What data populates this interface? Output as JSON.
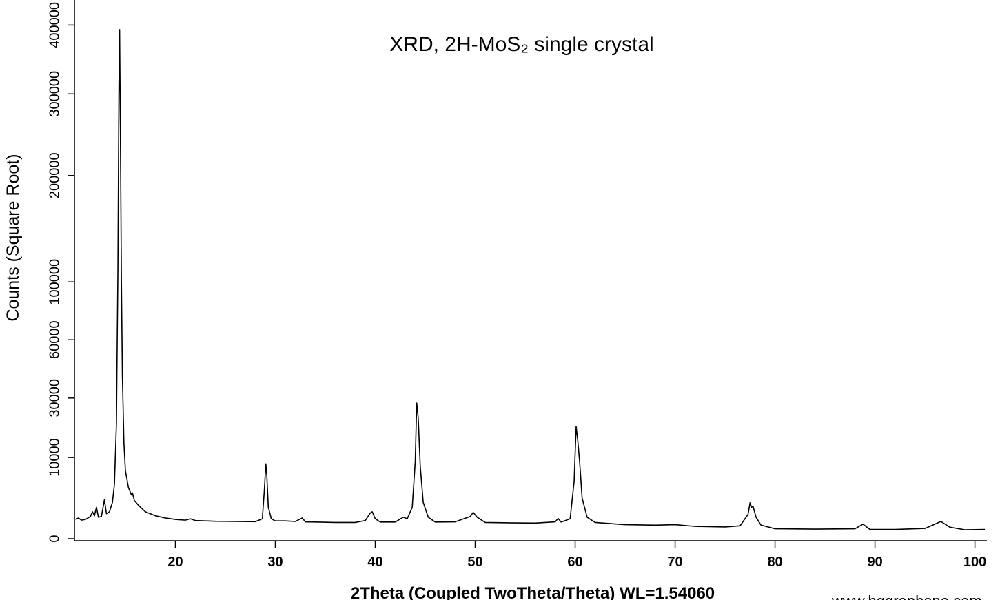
{
  "chart_data": {
    "type": "line",
    "title": "XRD, 2H-MoS₂ single crystal",
    "x_label": "2Theta (Coupled TwoTheta/Theta) WL=1.54060",
    "y_label": "Counts (Square Root)",
    "watermark": "www.hqgraphene.com",
    "yscale": "sqrt",
    "color": "#000000",
    "xlim": [
      9.9,
      101.2
    ],
    "ylim": [
      0,
      440000
    ],
    "xticks": [
      20,
      30,
      40,
      50,
      60,
      70,
      80,
      90,
      100
    ],
    "yticks": [
      0,
      10000,
      30000,
      60000,
      100000,
      200000,
      300000,
      400000
    ],
    "x": [
      10.0,
      10.3,
      10.6,
      11.0,
      11.5,
      11.7,
      11.9,
      12.1,
      12.3,
      12.6,
      12.9,
      13.1,
      13.4,
      13.7,
      13.9,
      14.1,
      14.25,
      14.35,
      14.42,
      14.5,
      14.6,
      14.7,
      14.85,
      15.0,
      15.3,
      15.6,
      15.7,
      15.9,
      16.3,
      17.0,
      18.0,
      19.0,
      20.0,
      21.0,
      21.5,
      22.0,
      24.0,
      26.0,
      28.0,
      28.7,
      28.9,
      29.05,
      29.15,
      29.3,
      29.6,
      30.0,
      31.0,
      32.0,
      32.7,
      33.0,
      34.0,
      36.0,
      38.0,
      39.0,
      39.5,
      39.7,
      40.0,
      40.5,
      42.0,
      42.8,
      43.2,
      43.7,
      44.0,
      44.15,
      44.3,
      44.5,
      44.8,
      45.3,
      46.0,
      48.0,
      49.5,
      49.8,
      50.2,
      51.0,
      54.0,
      56.0,
      58.0,
      58.3,
      58.6,
      59.5,
      59.9,
      60.1,
      60.25,
      60.45,
      60.7,
      61.2,
      62.0,
      65.0,
      68.0,
      70.0,
      72.0,
      75.0,
      76.5,
      77.3,
      77.5,
      77.65,
      77.8,
      78.1,
      78.6,
      80.0,
      84.0,
      88.0,
      88.8,
      89.5,
      92.0,
      95.0,
      96.6,
      97.5,
      99.0,
      101.0
    ],
    "values": [
      560,
      650,
      520,
      560,
      750,
      1100,
      800,
      1500,
      700,
      750,
      2300,
      950,
      1100,
      2000,
      4500,
      20000,
      110000,
      300000,
      393000,
      250000,
      100000,
      40000,
      14000,
      7000,
      4000,
      2900,
      3200,
      2200,
      1700,
      1100,
      800,
      650,
      560,
      520,
      600,
      500,
      460,
      450,
      440,
      600,
      3500,
      8500,
      6000,
      1500,
      600,
      480,
      480,
      450,
      650,
      430,
      420,
      400,
      400,
      500,
      1000,
      1100,
      600,
      420,
      420,
      700,
      600,
      1500,
      9000,
      27900,
      22000,
      8000,
      2000,
      700,
      420,
      430,
      750,
      1050,
      700,
      400,
      380,
      370,
      430,
      620,
      420,
      600,
      5000,
      19100,
      15000,
      9000,
      2500,
      700,
      400,
      300,
      280,
      300,
      230,
      210,
      250,
      900,
      1950,
      1500,
      1600,
      700,
      280,
      150,
      140,
      150,
      320,
      130,
      130,
      160,
      450,
      200,
      120,
      130
    ]
  }
}
